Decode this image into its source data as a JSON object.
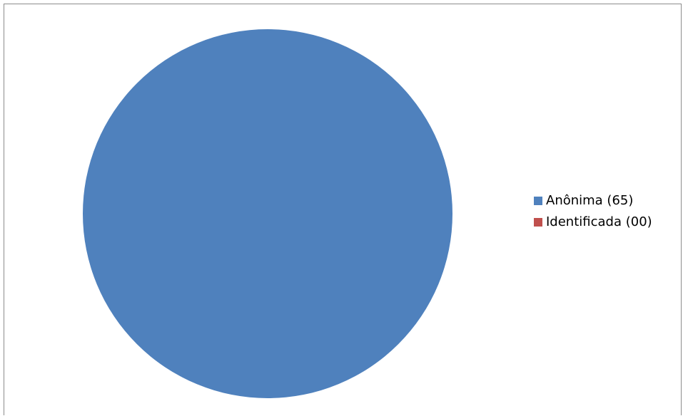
{
  "chart_data": {
    "type": "pie",
    "title": "",
    "categories": [
      "Anônima (65)",
      "Identificada (00)"
    ],
    "values": [
      65,
      0
    ],
    "colors": [
      "#4f81bd",
      "#c0504d"
    ],
    "legend_position": "right"
  }
}
